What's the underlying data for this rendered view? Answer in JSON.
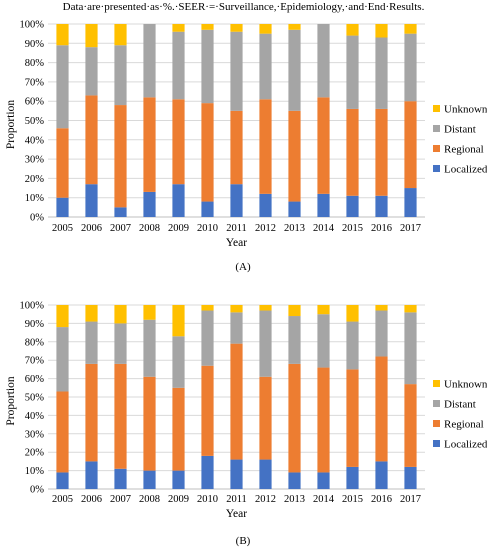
{
  "caption": "Data·are·presented·as·%.·SEER·=·Surveillance,·Epidemiology,·and·End·Results.",
  "colors": {
    "Localized": "#4472c4",
    "Regional": "#ed7d31",
    "Distant": "#a5a5a5",
    "Unknown": "#ffc000",
    "grid": "#d9d9d9",
    "axis": "#bfbfbf"
  },
  "chart_data": [
    {
      "type": "bar",
      "stacked": true,
      "panel_label": "(A)",
      "xlabel": "Year",
      "ylabel": "Proportion",
      "ylim": [
        0,
        100
      ],
      "y_ticks": [
        "0%",
        "10%",
        "20%",
        "30%",
        "40%",
        "50%",
        "60%",
        "70%",
        "80%",
        "90%",
        "100%"
      ],
      "grid": true,
      "legend_position": "right",
      "legend": [
        "Unknown",
        "Distant",
        "Regional",
        "Localized"
      ],
      "categories": [
        "2005",
        "2006",
        "2007",
        "2008",
        "2009",
        "2010",
        "2011",
        "2012",
        "2013",
        "2014",
        "2015",
        "2016",
        "2017"
      ],
      "series": [
        {
          "name": "Localized",
          "values": [
            10,
            17,
            5,
            13,
            17,
            8,
            17,
            12,
            8,
            12,
            11,
            11,
            15
          ]
        },
        {
          "name": "Regional",
          "values": [
            36,
            46,
            53,
            49,
            44,
            51,
            38,
            49,
            47,
            50,
            45,
            45,
            45
          ]
        },
        {
          "name": "Distant",
          "values": [
            43,
            25,
            31,
            38,
            35,
            38,
            41,
            34,
            42,
            38,
            38,
            37,
            35
          ]
        },
        {
          "name": "Unknown",
          "values": [
            11,
            12,
            11,
            0,
            4,
            3,
            4,
            5,
            3,
            0,
            6,
            7,
            5
          ]
        }
      ]
    },
    {
      "type": "bar",
      "stacked": true,
      "panel_label": "(B)",
      "xlabel": "Year",
      "ylabel": "Proportion",
      "ylim": [
        0,
        100
      ],
      "y_ticks": [
        "0%",
        "10%",
        "20%",
        "30%",
        "40%",
        "50%",
        "60%",
        "70%",
        "80%",
        "90%",
        "100%"
      ],
      "grid": true,
      "legend_position": "right",
      "legend": [
        "Unknown",
        "Distant",
        "Regional",
        "Localized"
      ],
      "categories": [
        "2005",
        "2006",
        "2007",
        "2008",
        "2009",
        "2010",
        "2011",
        "2012",
        "2013",
        "2014",
        "2015",
        "2016",
        "2017"
      ],
      "series": [
        {
          "name": "Localized",
          "values": [
            9,
            15,
            11,
            10,
            10,
            18,
            16,
            16,
            9,
            9,
            12,
            15,
            12
          ]
        },
        {
          "name": "Regional",
          "values": [
            44,
            53,
            57,
            51,
            45,
            49,
            63,
            45,
            59,
            57,
            53,
            57,
            45
          ]
        },
        {
          "name": "Distant",
          "values": [
            35,
            23,
            22,
            31,
            28,
            30,
            17,
            36,
            26,
            29,
            26,
            25,
            39
          ]
        },
        {
          "name": "Unknown",
          "values": [
            12,
            9,
            10,
            8,
            17,
            3,
            4,
            3,
            6,
            5,
            9,
            3,
            4
          ]
        }
      ]
    }
  ]
}
